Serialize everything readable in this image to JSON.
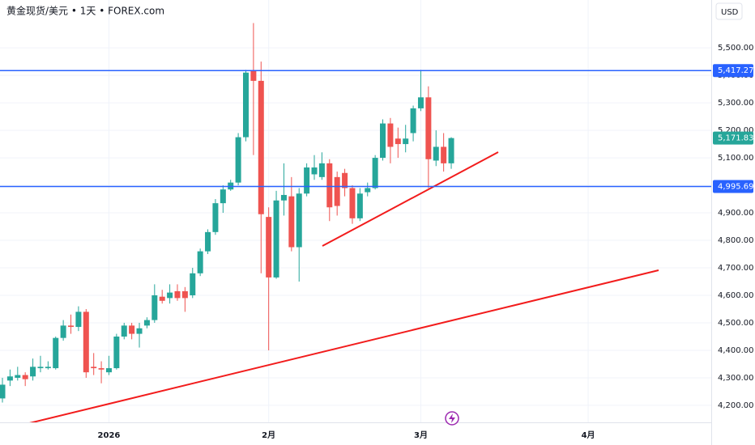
{
  "chart_data": {
    "type": "candlestick",
    "title": "黄金现货/美元 • 1天 • FOREX.com",
    "currency": "USD",
    "up_color": "#26a69a",
    "down_color": "#ef5350",
    "line_color": "#2962ff",
    "xlim": [
      -0.32,
      93.18
    ],
    "xticks": [
      {
        "value": 14,
        "label": "2026"
      },
      {
        "value": 35,
        "label": "2月"
      },
      {
        "value": 55,
        "label": "3月"
      },
      {
        "value": 77,
        "label": "4月"
      }
    ],
    "ylim": [
      4138,
      5674
    ],
    "yticks": [
      {
        "value": 4200,
        "label": "4,200.00"
      },
      {
        "value": 4300,
        "label": "4,300.00"
      },
      {
        "value": 4400,
        "label": "4,400.00"
      },
      {
        "value": 4500,
        "label": "4,500.00"
      },
      {
        "value": 4600,
        "label": "4,600.00"
      },
      {
        "value": 4700,
        "label": "4,700.00"
      },
      {
        "value": 4800,
        "label": "4,800.00"
      },
      {
        "value": 4900,
        "label": "4,900.00"
      },
      {
        "value": 5000,
        "label": "5,000.00"
      },
      {
        "value": 5100,
        "label": "5,100.00"
      },
      {
        "value": 5200,
        "label": "5,200.00"
      },
      {
        "value": 5300,
        "label": "5,300.00"
      },
      {
        "value": 5400,
        "label": "5,400.00"
      },
      {
        "value": 5500,
        "label": "5,500.00"
      }
    ],
    "grid": true,
    "open": [
      4225,
      4290,
      4300,
      4310,
      4305,
      4335,
      4335,
      4335,
      4445,
      4490,
      4485,
      4540,
      4340,
      4335,
      4320,
      4335,
      4450,
      4490,
      4460,
      4490,
      4510,
      4595,
      4590,
      4615,
      4615,
      4600,
      4680,
      4760,
      4830,
      4935,
      4985,
      5010,
      5175,
      5415,
      5380,
      4885,
      4665,
      4945,
      4960,
      4775,
      4970,
      5040,
      5030,
      5080,
      5030,
      5045,
      4990,
      4880,
      4975,
      4990,
      5100,
      5225,
      5170,
      5150,
      5190,
      5280,
      5320,
      5090,
      5140,
      5080
    ],
    "high": [
      4300,
      4330,
      4340,
      4320,
      4370,
      4380,
      4360,
      4450,
      4510,
      4530,
      4560,
      4550,
      4390,
      4360,
      4380,
      4460,
      4500,
      4500,
      4500,
      4520,
      4640,
      4620,
      4640,
      4640,
      4630,
      4700,
      4770,
      4840,
      4950,
      5000,
      5020,
      5190,
      5420,
      5590,
      5450,
      4920,
      4980,
      5080,
      5030,
      4990,
      5080,
      5110,
      5120,
      5095,
      5050,
      5060,
      5000,
      4990,
      5010,
      5110,
      5240,
      5245,
      5210,
      5220,
      5290,
      5420,
      5360,
      5200,
      5190,
      5175
    ],
    "low": [
      4210,
      4270,
      4290,
      4270,
      4290,
      4320,
      4330,
      4330,
      4435,
      4460,
      4470,
      4300,
      4310,
      4280,
      4310,
      4330,
      4440,
      4440,
      4410,
      4480,
      4500,
      4570,
      4570,
      4580,
      4540,
      4590,
      4670,
      4750,
      4820,
      4900,
      4980,
      5000,
      5160,
      5110,
      4680,
      4400,
      4660,
      4890,
      4760,
      4650,
      4960,
      5020,
      5020,
      4870,
      4890,
      4960,
      4860,
      4870,
      4960,
      4985,
      5090,
      5080,
      5100,
      5120,
      5160,
      5270,
      4990,
      5070,
      5050,
      5060
    ],
    "close": [
      4275,
      4305,
      4310,
      4295,
      4340,
      4340,
      4340,
      4445,
      4490,
      4485,
      4540,
      4320,
      4335,
      4330,
      4335,
      4450,
      4490,
      4460,
      4480,
      4510,
      4600,
      4580,
      4610,
      4590,
      4590,
      4680,
      4760,
      4830,
      4935,
      4985,
      5010,
      5175,
      5410,
      5380,
      4895,
      4665,
      4945,
      4965,
      4775,
      4970,
      5065,
      5065,
      5080,
      4920,
      4925,
      4990,
      4880,
      4970,
      4990,
      5100,
      5225,
      5140,
      5150,
      5170,
      5280,
      5320,
      5095,
      5140,
      5080,
      5171.83
    ],
    "price_lines": [
      {
        "value": 5417.27,
        "label": "5,417.27"
      },
      {
        "value": 4995.69,
        "label": "4,995.69"
      }
    ],
    "last_price": {
      "value": 5171.83,
      "label": "5,171.83"
    }
  }
}
